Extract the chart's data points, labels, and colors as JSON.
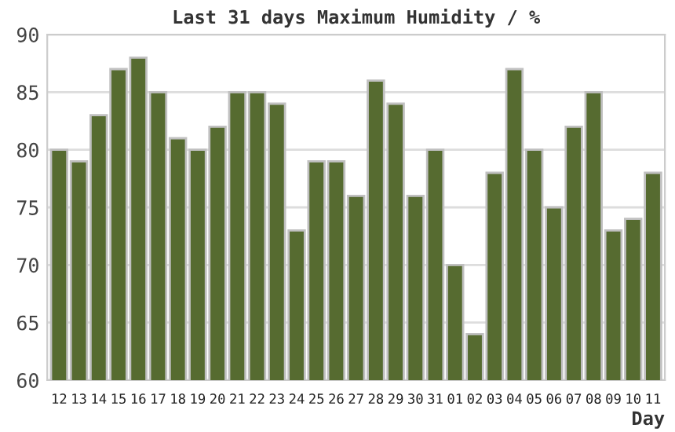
{
  "chart_data": {
    "type": "bar",
    "title": "Last 31 days Maximum Humidity / %",
    "xlabel": "Day",
    "categories": [
      "12",
      "13",
      "14",
      "15",
      "16",
      "17",
      "18",
      "19",
      "20",
      "21",
      "22",
      "23",
      "24",
      "25",
      "26",
      "27",
      "28",
      "29",
      "30",
      "31",
      "01",
      "02",
      "03",
      "04",
      "05",
      "06",
      "07",
      "08",
      "09",
      "10",
      "11"
    ],
    "values": [
      80,
      79,
      83,
      87,
      88,
      85,
      81,
      80,
      82,
      85,
      85,
      84,
      73,
      79,
      79,
      76,
      86,
      84,
      76,
      80,
      70,
      64,
      78,
      87,
      80,
      75,
      82,
      85,
      73,
      74,
      78
    ],
    "color": "#566b30",
    "ylim": [
      60,
      90
    ],
    "yticks": [
      60,
      65,
      70,
      75,
      80,
      85,
      90
    ],
    "grid": "y",
    "legend": false
  }
}
